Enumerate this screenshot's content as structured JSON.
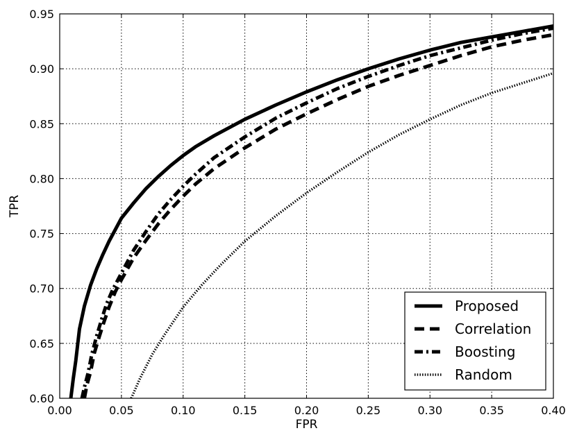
{
  "chart_data": {
    "type": "line",
    "title": "",
    "xlabel": "FPR",
    "ylabel": "TPR",
    "xlim": [
      0.0,
      0.4
    ],
    "ylim": [
      0.6,
      0.95
    ],
    "x_ticks": [
      "0.00",
      "0.05",
      "0.10",
      "0.15",
      "0.20",
      "0.25",
      "0.30",
      "0.35",
      "0.40"
    ],
    "y_ticks": [
      "0.60",
      "0.65",
      "0.70",
      "0.75",
      "0.80",
      "0.85",
      "0.90",
      "0.95"
    ],
    "grid": true,
    "legend_position": "bottom-right",
    "series": [
      {
        "name": "Proposed",
        "style": "solid",
        "points": [
          [
            0.009,
            0.6
          ],
          [
            0.011,
            0.618
          ],
          [
            0.013,
            0.634
          ],
          [
            0.016,
            0.663
          ],
          [
            0.02,
            0.684
          ],
          [
            0.025,
            0.703
          ],
          [
            0.03,
            0.718
          ],
          [
            0.035,
            0.731
          ],
          [
            0.04,
            0.743
          ],
          [
            0.05,
            0.764
          ],
          [
            0.06,
            0.778
          ],
          [
            0.07,
            0.791
          ],
          [
            0.08,
            0.802
          ],
          [
            0.09,
            0.812
          ],
          [
            0.1,
            0.821
          ],
          [
            0.11,
            0.829
          ],
          [
            0.125,
            0.839
          ],
          [
            0.15,
            0.854
          ],
          [
            0.175,
            0.867
          ],
          [
            0.2,
            0.879
          ],
          [
            0.225,
            0.89
          ],
          [
            0.25,
            0.9
          ],
          [
            0.275,
            0.909
          ],
          [
            0.3,
            0.917
          ],
          [
            0.325,
            0.924
          ],
          [
            0.35,
            0.929
          ],
          [
            0.375,
            0.934
          ],
          [
            0.4,
            0.939
          ]
        ]
      },
      {
        "name": "Correlation",
        "style": "dashed",
        "points": [
          [
            0.02,
            0.6
          ],
          [
            0.022,
            0.612
          ],
          [
            0.025,
            0.624
          ],
          [
            0.028,
            0.641
          ],
          [
            0.032,
            0.656
          ],
          [
            0.036,
            0.67
          ],
          [
            0.04,
            0.683
          ],
          [
            0.045,
            0.697
          ],
          [
            0.05,
            0.708
          ],
          [
            0.06,
            0.728
          ],
          [
            0.07,
            0.744
          ],
          [
            0.08,
            0.759
          ],
          [
            0.09,
            0.772
          ],
          [
            0.1,
            0.784
          ],
          [
            0.11,
            0.795
          ],
          [
            0.125,
            0.809
          ],
          [
            0.15,
            0.828
          ],
          [
            0.175,
            0.845
          ],
          [
            0.2,
            0.859
          ],
          [
            0.225,
            0.872
          ],
          [
            0.25,
            0.884
          ],
          [
            0.275,
            0.894
          ],
          [
            0.3,
            0.903
          ],
          [
            0.325,
            0.912
          ],
          [
            0.35,
            0.92
          ],
          [
            0.375,
            0.926
          ],
          [
            0.4,
            0.931
          ]
        ]
      },
      {
        "name": "Boosting",
        "style": "dashdot",
        "points": [
          [
            0.018,
            0.6
          ],
          [
            0.02,
            0.61
          ],
          [
            0.023,
            0.623
          ],
          [
            0.026,
            0.64
          ],
          [
            0.03,
            0.657
          ],
          [
            0.034,
            0.672
          ],
          [
            0.038,
            0.686
          ],
          [
            0.043,
            0.699
          ],
          [
            0.05,
            0.714
          ],
          [
            0.06,
            0.735
          ],
          [
            0.07,
            0.752
          ],
          [
            0.08,
            0.768
          ],
          [
            0.09,
            0.781
          ],
          [
            0.1,
            0.793
          ],
          [
            0.11,
            0.804
          ],
          [
            0.125,
            0.819
          ],
          [
            0.15,
            0.838
          ],
          [
            0.175,
            0.855
          ],
          [
            0.2,
            0.869
          ],
          [
            0.225,
            0.882
          ],
          [
            0.25,
            0.893
          ],
          [
            0.275,
            0.903
          ],
          [
            0.3,
            0.912
          ],
          [
            0.325,
            0.919
          ],
          [
            0.35,
            0.926
          ],
          [
            0.375,
            0.932
          ],
          [
            0.4,
            0.937
          ]
        ]
      },
      {
        "name": "Random",
        "style": "dotted",
        "points": [
          [
            0.058,
            0.6
          ],
          [
            0.065,
            0.618
          ],
          [
            0.075,
            0.64
          ],
          [
            0.085,
            0.658
          ],
          [
            0.1,
            0.683
          ],
          [
            0.115,
            0.703
          ],
          [
            0.13,
            0.721
          ],
          [
            0.15,
            0.743
          ],
          [
            0.175,
            0.766
          ],
          [
            0.2,
            0.787
          ],
          [
            0.225,
            0.806
          ],
          [
            0.25,
            0.824
          ],
          [
            0.275,
            0.84
          ],
          [
            0.3,
            0.854
          ],
          [
            0.325,
            0.867
          ],
          [
            0.35,
            0.878
          ],
          [
            0.375,
            0.887
          ],
          [
            0.4,
            0.896
          ]
        ]
      }
    ]
  }
}
